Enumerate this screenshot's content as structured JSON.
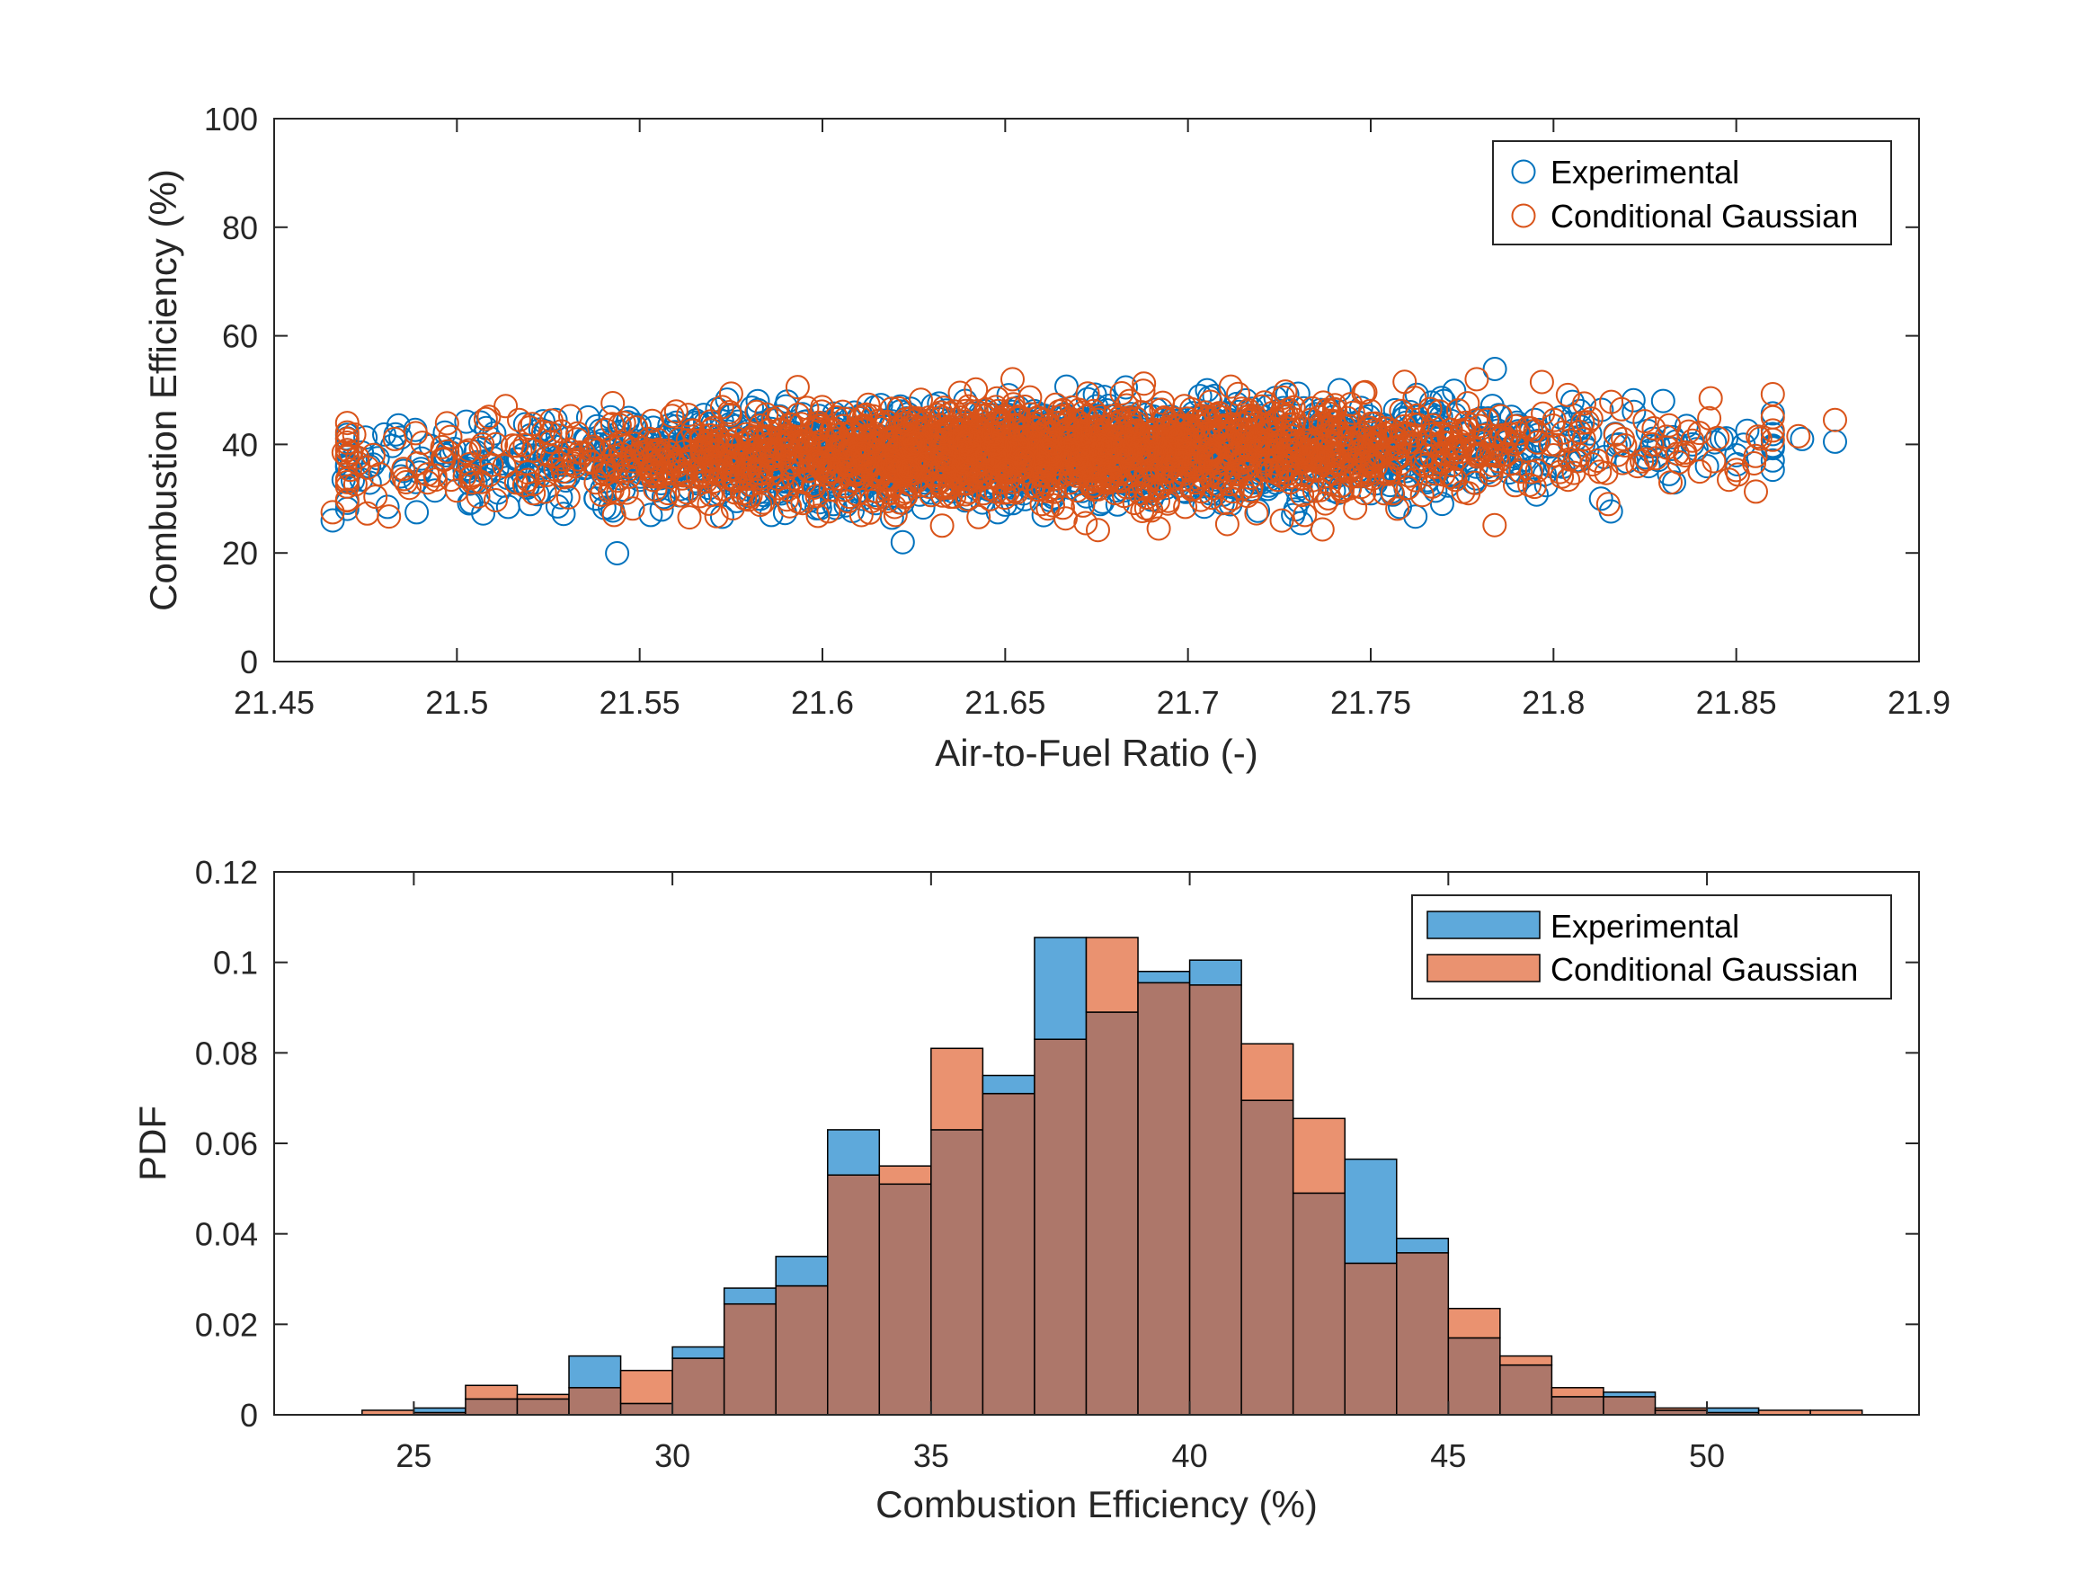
{
  "colors": {
    "experimental": "#0072BD",
    "gaussian": "#D95319",
    "experimental_fill": "#5EA9DB",
    "gaussian_fill": "#EA9270",
    "overlap_fill": "#AD776A",
    "axis": "#262626"
  },
  "chart_data": [
    {
      "type": "scatter",
      "xlabel": "Air-to-Fuel Ratio (-)",
      "ylabel": "Combustion Efficiency (%)",
      "xlim": [
        21.45,
        21.9
      ],
      "ylim": [
        0,
        100
      ],
      "x_ticks": [
        "21.45",
        "21.5",
        "21.55",
        "21.6",
        "21.65",
        "21.7",
        "21.75",
        "21.8",
        "21.85",
        "21.9"
      ],
      "y_ticks": [
        "0",
        "20",
        "40",
        "60",
        "80",
        "100"
      ],
      "grid": false,
      "legend_position": "top-right",
      "marker": "open-circle",
      "series": [
        {
          "name": "Experimental",
          "points": [
            [
              21.466,
              26
            ],
            [
              21.469,
              33.5
            ],
            [
              21.474,
              38.5
            ],
            [
              21.476,
              36
            ],
            [
              21.481,
              28.5
            ],
            [
              21.484,
              43.5
            ],
            [
              21.489,
              27.5
            ],
            [
              21.494,
              31.5
            ],
            [
              21.497,
              38
            ],
            [
              21.503,
              35
            ],
            [
              21.508,
              43
            ],
            [
              21.511,
              35.5
            ],
            [
              21.514,
              28.5
            ],
            [
              21.517,
              33
            ],
            [
              21.52,
              29
            ],
            [
              21.524,
              40
            ],
            [
              21.527,
              44.5
            ],
            [
              21.53,
              35
            ],
            [
              21.535,
              41
            ],
            [
              21.538,
              30
            ],
            [
              21.542,
              45
            ],
            [
              21.546,
              38
            ],
            [
              21.55,
              33.5
            ],
            [
              21.553,
              27
            ],
            [
              21.556,
              28
            ],
            [
              21.56,
              44
            ],
            [
              21.564,
              36
            ],
            [
              21.568,
              40
            ],
            [
              21.572,
              31
            ],
            [
              21.575,
              37.5
            ],
            [
              21.579,
              34
            ],
            [
              21.583,
              30
            ],
            [
              21.586,
              27
            ],
            [
              21.59,
              47
            ],
            [
              21.593,
              36
            ],
            [
              21.596,
              39
            ],
            [
              21.599,
              33
            ],
            [
              21.603,
              29
            ],
            [
              21.607,
              42
            ],
            [
              21.611,
              35
            ],
            [
              21.615,
              40
            ],
            [
              21.619,
              26.5
            ],
            [
              21.622,
              38
            ],
            [
              21.625,
              44
            ],
            [
              21.628,
              33
            ],
            [
              21.632,
              36.5
            ],
            [
              21.636,
              41
            ],
            [
              21.64,
              30
            ],
            [
              21.644,
              38
            ],
            [
              21.648,
              27.5
            ],
            [
              21.652,
              46
            ],
            [
              21.656,
              34
            ],
            [
              21.66,
              39
            ],
            [
              21.664,
              32
            ],
            [
              21.668,
              43
            ],
            [
              21.672,
              36
            ],
            [
              21.676,
              29
            ],
            [
              21.68,
              40
            ],
            [
              21.683,
              50.5
            ],
            [
              21.686,
              35
            ],
            [
              21.69,
              38
            ],
            [
              21.694,
              32
            ],
            [
              21.698,
              44
            ],
            [
              21.702,
              37
            ],
            [
              21.706,
              31
            ],
            [
              21.71,
              41
            ],
            [
              21.714,
              36
            ],
            [
              21.718,
              33
            ],
            [
              21.722,
              47
            ],
            [
              21.726,
              38
            ],
            [
              21.731,
              25.5
            ],
            [
              21.734,
              40
            ],
            [
              21.738,
              34
            ],
            [
              21.742,
              43
            ],
            [
              21.746,
              37
            ],
            [
              21.75,
              31
            ],
            [
              21.754,
              39
            ],
            [
              21.758,
              28.5
            ],
            [
              21.762,
              42
            ],
            [
              21.766,
              35
            ],
            [
              21.77,
              48
            ],
            [
              21.774,
              38
            ],
            [
              21.778,
              33
            ],
            [
              21.782,
              41
            ],
            [
              21.786,
              36
            ],
            [
              21.79,
              44
            ],
            [
              21.794,
              39
            ],
            [
              21.798,
              32.5
            ],
            [
              21.802,
              45
            ],
            [
              21.806,
              37
            ],
            [
              21.81,
              42
            ],
            [
              21.813,
              30
            ],
            [
              21.818,
              40
            ],
            [
              21.822,
              46
            ],
            [
              21.826,
              36
            ],
            [
              21.83,
              48
            ],
            [
              21.833,
              33
            ],
            [
              21.838,
              40
            ],
            [
              21.842,
              36
            ],
            [
              21.846,
              41
            ],
            [
              21.85,
              38
            ],
            [
              21.853,
              42.5
            ],
            [
              21.868,
              41
            ],
            [
              21.877,
              40.5
            ]
          ]
        },
        {
          "name": "Conditional Gaussian",
          "points": [
            [
              21.466,
              27.5
            ],
            [
              21.469,
              38.5
            ],
            [
              21.473,
              36.5
            ],
            [
              21.479,
              34.5
            ],
            [
              21.483,
              41
            ],
            [
              21.487,
              32
            ],
            [
              21.492,
              33
            ],
            [
              21.496,
              39.5
            ],
            [
              21.5,
              31.5
            ],
            [
              21.507,
              40
            ],
            [
              21.513,
              36
            ],
            [
              21.517,
              44.5
            ],
            [
              21.521,
              31
            ],
            [
              21.525,
              38
            ],
            [
              21.529,
              35
            ],
            [
              21.533,
              42
            ],
            [
              21.538,
              33
            ],
            [
              21.543,
              27
            ],
            [
              21.548,
              39
            ],
            [
              21.552,
              36
            ],
            [
              21.557,
              30
            ],
            [
              21.561,
              41
            ],
            [
              21.566,
              34
            ],
            [
              21.57,
              43
            ],
            [
              21.574,
              38
            ],
            [
              21.578,
              31
            ],
            [
              21.582,
              46
            ],
            [
              21.586,
              35.5
            ],
            [
              21.59,
              40
            ],
            [
              21.595,
              33
            ],
            [
              21.599,
              44
            ],
            [
              21.603,
              37
            ],
            [
              21.607,
              29.5
            ],
            [
              21.611,
              41
            ],
            [
              21.616,
              35
            ],
            [
              21.62,
              27
            ],
            [
              21.624,
              39
            ],
            [
              21.628,
              43
            ],
            [
              21.632,
              33
            ],
            [
              21.636,
              37
            ],
            [
              21.64,
              47
            ],
            [
              21.644,
              31
            ],
            [
              21.648,
              40
            ],
            [
              21.652,
              52
            ],
            [
              21.656,
              36
            ],
            [
              21.66,
              29
            ],
            [
              21.664,
              44
            ],
            [
              21.668,
              38
            ],
            [
              21.672,
              25.5
            ],
            [
              21.676,
              41
            ],
            [
              21.68,
              35
            ],
            [
              21.684,
              48
            ],
            [
              21.688,
              32
            ],
            [
              21.692,
              24.5
            ],
            [
              21.696,
              39
            ],
            [
              21.7,
              43.5
            ],
            [
              21.704,
              34
            ],
            [
              21.708,
              37
            ],
            [
              21.712,
              30
            ],
            [
              21.716,
              45
            ],
            [
              21.72,
              36
            ],
            [
              21.724,
              41
            ],
            [
              21.728,
              33
            ],
            [
              21.732,
              27
            ],
            [
              21.736,
              39
            ],
            [
              21.74,
              44
            ],
            [
              21.744,
              35
            ],
            [
              21.748,
              49.5
            ],
            [
              21.752,
              38
            ],
            [
              21.756,
              31
            ],
            [
              21.76,
              42
            ],
            [
              21.764,
              36.5
            ],
            [
              21.768,
              40
            ],
            [
              21.772,
              34
            ],
            [
              21.776,
              44
            ],
            [
              21.779,
              52
            ],
            [
              21.783,
              38
            ],
            [
              21.787,
              41
            ],
            [
              21.791,
              35
            ],
            [
              21.795,
              42.5
            ],
            [
              21.8,
              38
            ],
            [
              21.804,
              33.5
            ],
            [
              21.808,
              44
            ],
            [
              21.812,
              37
            ],
            [
              21.815,
              29
            ],
            [
              21.819,
              41
            ],
            [
              21.823,
              36
            ],
            [
              21.827,
              40
            ],
            [
              21.832,
              33
            ],
            [
              21.836,
              38
            ],
            [
              21.84,
              35
            ],
            [
              21.843,
              48.5
            ],
            [
              21.848,
              33.5
            ],
            [
              21.867,
              41.5
            ],
            [
              21.877,
              44.5
            ]
          ]
        }
      ],
      "scatter_density": {
        "x_center": 21.66,
        "x_spread": 0.075,
        "y_center": 38.5,
        "y_spread": 4.2,
        "count_per_series": 1800
      }
    },
    {
      "type": "histogram",
      "xlabel": "Combustion Efficiency (%)",
      "ylabel": "PDF",
      "xlim": [
        22.3,
        54.1
      ],
      "ylim": [
        0,
        0.12
      ],
      "x_ticks": [
        "25",
        "30",
        "35",
        "40",
        "45",
        "50"
      ],
      "y_ticks": [
        "0",
        "0.02",
        "0.04",
        "0.06",
        "0.08",
        "0.1",
        "0.12"
      ],
      "grid": false,
      "legend_position": "top-right",
      "bin_edges": [
        24,
        25,
        26,
        27,
        28,
        29,
        30,
        31,
        32,
        33,
        34,
        35,
        36,
        37,
        38,
        39,
        40,
        41,
        42,
        43,
        44,
        45,
        46,
        47,
        48,
        49,
        50,
        51,
        52,
        53
      ],
      "series": [
        {
          "name": "Experimental",
          "values": [
            0,
            0.0015,
            0.0035,
            0.0035,
            0.013,
            0.0025,
            0.015,
            0.028,
            0.035,
            0.063,
            0.051,
            0.063,
            0.075,
            0.1055,
            0.089,
            0.098,
            0.1005,
            0.0695,
            0.049,
            0.0565,
            0.039,
            0.017,
            0.011,
            0.004,
            0.005,
            0.001,
            0.0015,
            0,
            0
          ]
        },
        {
          "name": "Conditional Gaussian",
          "values": [
            0.001,
            0.0005,
            0.0065,
            0.0045,
            0.006,
            0.0098,
            0.0125,
            0.0245,
            0.0285,
            0.053,
            0.055,
            0.081,
            0.071,
            0.083,
            0.1055,
            0.0955,
            0.095,
            0.082,
            0.0655,
            0.0335,
            0.0358,
            0.0235,
            0.013,
            0.006,
            0.004,
            0.0015,
            0.0005,
            0.001,
            0.001
          ]
        }
      ]
    }
  ]
}
